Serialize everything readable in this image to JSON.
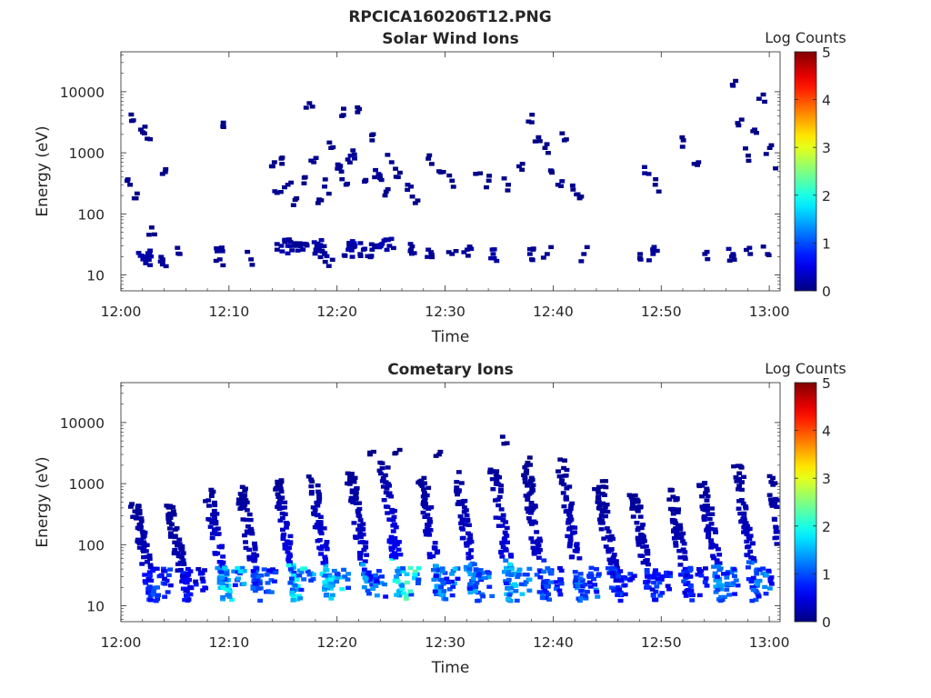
{
  "figure": {
    "title": "RPCICA160206T12.PNG"
  },
  "chart_data": [
    {
      "type": "heatmap",
      "title": "Solar Wind Ions",
      "xlabel": "Time",
      "ylabel": "Energy (eV)",
      "x_ticks": [
        "12:00",
        "12:10",
        "12:20",
        "12:30",
        "12:40",
        "12:50",
        "13:00"
      ],
      "x_range_minutes": [
        0,
        61
      ],
      "y_scale": "log",
      "y_ticks": [
        "10",
        "100",
        "1000",
        "10000"
      ],
      "y_range": [
        5.5,
        45000
      ],
      "colorbar": {
        "label": "Log Counts",
        "range": [
          0,
          5
        ],
        "ticks": [
          "0",
          "1",
          "2",
          "3",
          "4",
          "5"
        ],
        "colormap": "jet"
      },
      "cells": [
        [
          1.8,
          18,
          0.25
        ],
        [
          2.2,
          18,
          0.2
        ],
        [
          2.4,
          22,
          0.2
        ],
        [
          3.6,
          18,
          0.15
        ],
        [
          5.2,
          22,
          0.1
        ],
        [
          8.8,
          26,
          0.15
        ],
        [
          8.9,
          18,
          0.1
        ],
        [
          11.8,
          18,
          0.1
        ],
        [
          14.6,
          30,
          0.2
        ],
        [
          15.2,
          30,
          0.25
        ],
        [
          15.8,
          30,
          0.15
        ],
        [
          16.6,
          26,
          0.15
        ],
        [
          17.8,
          26,
          0.2
        ],
        [
          18.2,
          30,
          0.25
        ],
        [
          18.6,
          22,
          0.15
        ],
        [
          19.0,
          14,
          0.1
        ],
        [
          20.8,
          26,
          0.2
        ],
        [
          21.4,
          30,
          0.25
        ],
        [
          22.2,
          26,
          0.2
        ],
        [
          23.0,
          26,
          0.15
        ],
        [
          23.8,
          30,
          0.25
        ],
        [
          24.6,
          30,
          0.2
        ],
        [
          26.6,
          26,
          0.15
        ],
        [
          28.2,
          26,
          0.15
        ],
        [
          30.4,
          22,
          0.1
        ],
        [
          31.8,
          26,
          0.15
        ],
        [
          34.2,
          22,
          0.2
        ],
        [
          37.6,
          22,
          0.15
        ],
        [
          39.2,
          22,
          0.1
        ],
        [
          42.6,
          22,
          0.1
        ],
        [
          47.8,
          22,
          0.1
        ],
        [
          49.0,
          22,
          0.15
        ],
        [
          53.8,
          22,
          0.1
        ],
        [
          56.4,
          22,
          0.15
        ],
        [
          58.0,
          22,
          0.1
        ],
        [
          59.6,
          22,
          0.1
        ],
        [
          0.6,
          300,
          0.1
        ],
        [
          0.9,
          3400,
          0.05
        ],
        [
          1.0,
          180,
          0.05
        ],
        [
          1.6,
          2400,
          0.05
        ],
        [
          2.2,
          1700,
          0.05
        ],
        [
          2.6,
          60,
          0.05
        ],
        [
          3.6,
          450,
          0.05
        ],
        [
          9.2,
          2700,
          0.05
        ],
        [
          13.8,
          600,
          0.05
        ],
        [
          14.2,
          220,
          0.1
        ],
        [
          14.6,
          800,
          0.05
        ],
        [
          15.2,
          300,
          0.1
        ],
        [
          16.0,
          180,
          0.05
        ],
        [
          16.8,
          400,
          0.1
        ],
        [
          17.2,
          6500,
          0.05
        ],
        [
          17.6,
          700,
          0.1
        ],
        [
          18.0,
          150,
          0.05
        ],
        [
          18.6,
          280,
          0.1
        ],
        [
          19.2,
          1200,
          0.05
        ],
        [
          19.8,
          550,
          0.15
        ],
        [
          20.2,
          4000,
          0.05
        ],
        [
          20.6,
          300,
          0.1
        ],
        [
          21.0,
          900,
          0.15
        ],
        [
          21.8,
          5200,
          0.05
        ],
        [
          22.4,
          350,
          0.1
        ],
        [
          23.0,
          1600,
          0.05
        ],
        [
          23.6,
          450,
          0.15
        ],
        [
          24.2,
          200,
          0.1
        ],
        [
          24.8,
          700,
          0.1
        ],
        [
          25.4,
          400,
          0.05
        ],
        [
          26.6,
          280,
          0.1
        ],
        [
          27.0,
          150,
          0.05
        ],
        [
          28.2,
          800,
          0.05
        ],
        [
          29.2,
          500,
          0.05
        ],
        [
          30.4,
          350,
          0.1
        ],
        [
          32.6,
          450,
          0.05
        ],
        [
          33.8,
          350,
          0.05
        ],
        [
          35.6,
          300,
          0.05
        ],
        [
          36.6,
          600,
          0.05
        ],
        [
          37.8,
          4200,
          0.05
        ],
        [
          38.4,
          1800,
          0.05
        ],
        [
          39.0,
          1200,
          0.05
        ],
        [
          39.6,
          500,
          0.05
        ],
        [
          40.2,
          300,
          0.1
        ],
        [
          40.8,
          1600,
          0.05
        ],
        [
          41.6,
          250,
          0.05
        ],
        [
          42.2,
          180,
          0.05
        ],
        [
          48.6,
          450,
          0.1
        ],
        [
          49.2,
          300,
          0.05
        ],
        [
          51.8,
          1600,
          0.05
        ],
        [
          53.2,
          700,
          0.05
        ],
        [
          56.4,
          12500,
          0.05
        ],
        [
          57.2,
          3500,
          0.05
        ],
        [
          57.8,
          900,
          0.05
        ],
        [
          58.4,
          2400,
          0.05
        ],
        [
          59.2,
          9000,
          0.05
        ],
        [
          59.8,
          1200,
          0.05
        ],
        [
          60.6,
          600,
          0.05
        ],
        [
          60.9,
          300,
          0.05
        ]
      ]
    },
    {
      "type": "heatmap",
      "title": "Cometary Ions",
      "xlabel": "Time",
      "ylabel": "Energy (eV)",
      "x_ticks": [
        "12:00",
        "12:10",
        "12:20",
        "12:30",
        "12:40",
        "12:50",
        "13:00"
      ],
      "x_range_minutes": [
        0,
        61
      ],
      "y_scale": "log",
      "y_ticks": [
        "10",
        "100",
        "1000",
        "10000"
      ],
      "y_range": [
        5.5,
        45000
      ],
      "colorbar": {
        "label": "Log Counts",
        "range": [
          0,
          5
        ],
        "ticks": [
          "0",
          "1",
          "2",
          "3",
          "4",
          "5"
        ],
        "colormap": "jet"
      },
      "bursts": [
        {
          "t": 1.0,
          "peak": 1.0,
          "top": 500
        },
        {
          "t": 4.2,
          "peak": 0.7,
          "top": 450
        },
        {
          "t": 7.8,
          "peak": 1.8,
          "top": 850
        },
        {
          "t": 10.8,
          "peak": 1.1,
          "top": 900
        },
        {
          "t": 14.2,
          "peak": 1.9,
          "top": 1200
        },
        {
          "t": 17.4,
          "peak": 1.8,
          "top": 1400
        },
        {
          "t": 21.0,
          "peak": 1.4,
          "top": 1500
        },
        {
          "t": 24.0,
          "peak": 2.1,
          "top": 2500
        },
        {
          "t": 27.6,
          "peak": 1.5,
          "top": 1300
        },
        {
          "t": 30.8,
          "peak": 1.4,
          "top": 1600
        },
        {
          "t": 34.2,
          "peak": 1.6,
          "top": 2200
        },
        {
          "t": 37.2,
          "peak": 1.1,
          "top": 2000
        },
        {
          "t": 40.6,
          "peak": 1.3,
          "top": 1800
        },
        {
          "t": 44.0,
          "peak": 1.0,
          "top": 900
        },
        {
          "t": 47.2,
          "peak": 0.9,
          "top": 700
        },
        {
          "t": 50.6,
          "peak": 0.9,
          "top": 850
        },
        {
          "t": 53.6,
          "peak": 1.4,
          "top": 1100
        },
        {
          "t": 56.8,
          "peak": 1.3,
          "top": 2000
        },
        {
          "t": 59.8,
          "peak": 1.1,
          "top": 1400
        }
      ],
      "cells": [
        [
          22.8,
          3000,
          0.05
        ],
        [
          25.2,
          3200,
          0.05
        ],
        [
          29.2,
          3000,
          0.05
        ],
        [
          35.2,
          4500,
          0.05
        ],
        [
          37.4,
          2200,
          0.05
        ],
        [
          40.8,
          2400,
          0.05
        ],
        [
          44.6,
          1100,
          0.05
        ]
      ]
    }
  ]
}
